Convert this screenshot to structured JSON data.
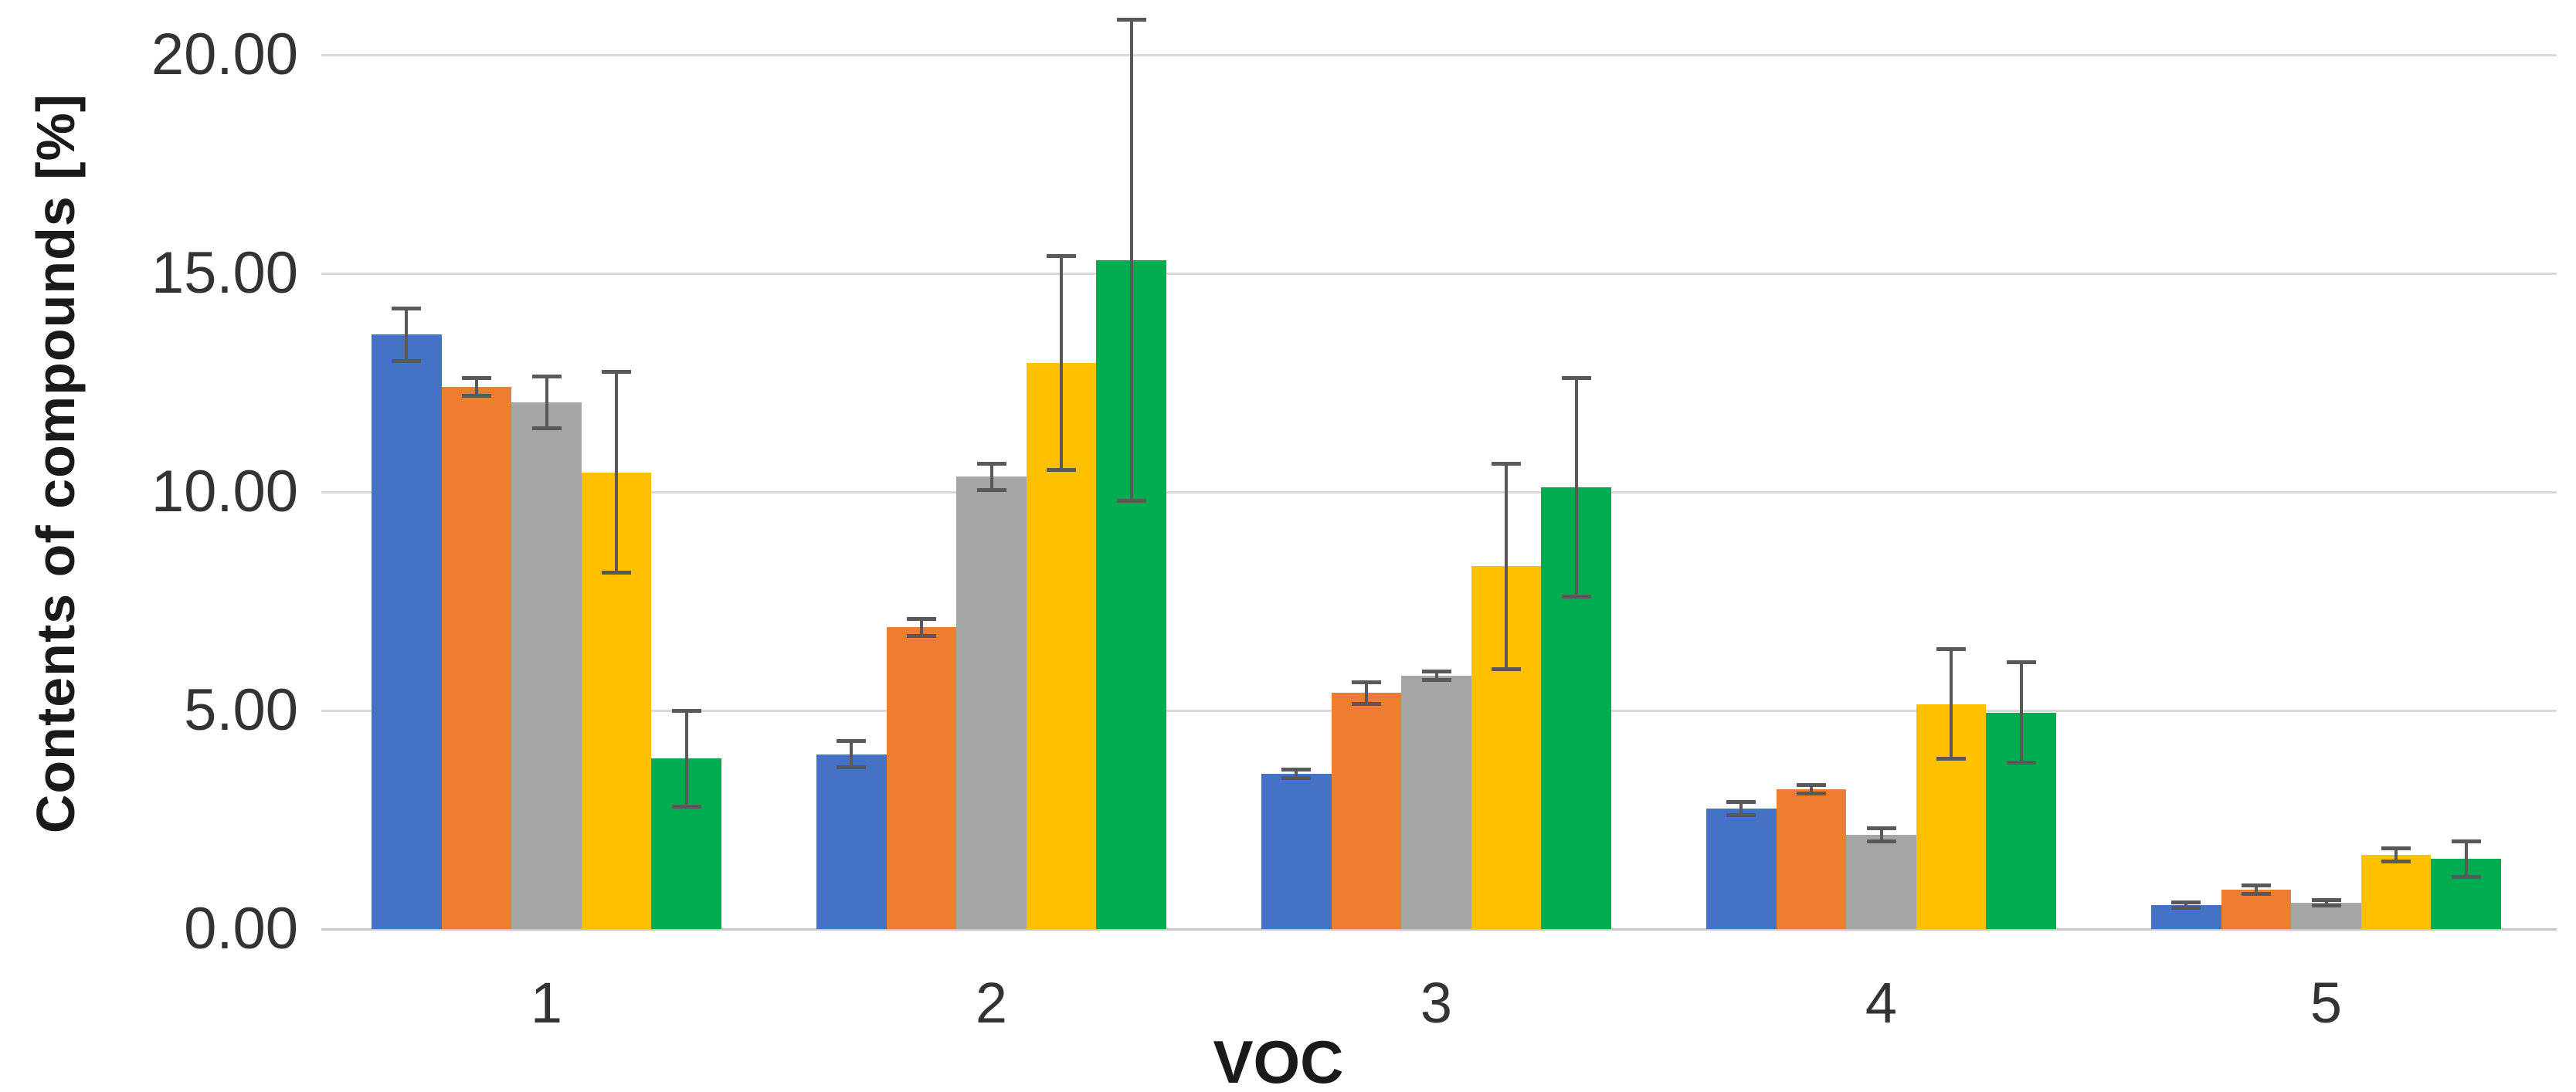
{
  "chart_data": {
    "type": "bar",
    "title": "",
    "xlabel": "VOC",
    "ylabel": "Contents of compounds [%]",
    "categories": [
      "1",
      "2",
      "3",
      "4",
      "5"
    ],
    "series": [
      {
        "name": "blue",
        "color": "#4472C4",
        "values": [
          13.6,
          4.0,
          3.55,
          2.75,
          0.55
        ],
        "errors": [
          0.6,
          0.3,
          0.1,
          0.15,
          0.06
        ]
      },
      {
        "name": "orange",
        "color": "#ED7D31",
        "values": [
          12.4,
          6.9,
          5.4,
          3.2,
          0.9
        ],
        "errors": [
          0.2,
          0.2,
          0.25,
          0.1,
          0.1
        ]
      },
      {
        "name": "gray",
        "color": "#A5A5A5",
        "values": [
          12.05,
          10.35,
          5.8,
          2.15,
          0.6
        ],
        "errors": [
          0.6,
          0.3,
          0.1,
          0.15,
          0.06
        ]
      },
      {
        "name": "yellow",
        "color": "#FFC000",
        "values": [
          10.45,
          12.95,
          8.3,
          5.15,
          1.7
        ],
        "errors": [
          2.3,
          2.45,
          2.35,
          1.25,
          0.15
        ]
      },
      {
        "name": "green",
        "color": "#00AC50",
        "values": [
          3.9,
          15.3,
          10.1,
          4.95,
          1.6
        ],
        "errors": [
          1.1,
          5.5,
          2.5,
          1.15,
          0.4
        ]
      }
    ],
    "y_ticks": [
      {
        "value": 20,
        "label": "20.00"
      },
      {
        "value": 15,
        "label": "15.00"
      },
      {
        "value": 10,
        "label": "10.00"
      },
      {
        "value": 5,
        "label": "5.00"
      },
      {
        "value": 0,
        "label": "0.00"
      }
    ],
    "ylim": [
      0,
      20
    ],
    "grid": "horizontal",
    "legend": "none",
    "gridline_color": "#D9D9D9",
    "baseline_color": "#C8C8C8",
    "error_bar_color": "#595959"
  }
}
